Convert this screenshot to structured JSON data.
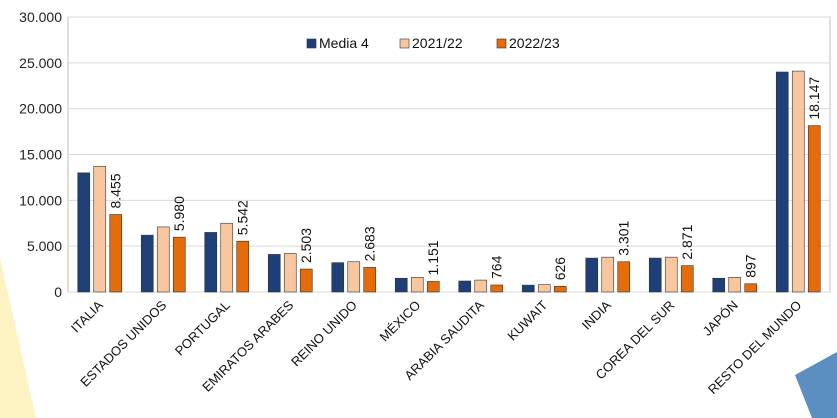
{
  "chart_data": {
    "type": "bar",
    "title": "",
    "xlabel": "",
    "ylabel": "",
    "ylim": [
      0,
      30000
    ],
    "yticks": [
      "0",
      "5.000",
      "10.000",
      "15.000",
      "20.000",
      "25.000",
      "30.000"
    ],
    "ytick_values": [
      0,
      5000,
      10000,
      15000,
      20000,
      25000,
      30000
    ],
    "grid": "horizontal",
    "legend_position": "top-center",
    "categories": [
      "ITALIA",
      "ESTADOS UNIDOS",
      "PORTUGAL",
      "EMIRATOS ARABES",
      "REINO UNIDO",
      "MÉXICO",
      "ARABIA SAUDITA",
      "KUWAIT",
      "INDIA",
      "COREA DEL SUR",
      "JAPÓN",
      "RESTO DEL MUNDO"
    ],
    "series": [
      {
        "name": "Media 4",
        "color": "#1f3f78",
        "values": [
          13000,
          6200,
          6500,
          4100,
          3200,
          1500,
          1200,
          750,
          3700,
          3700,
          1500,
          24000
        ]
      },
      {
        "name": "2021/22",
        "color": "#f8c79f",
        "values": [
          13700,
          7100,
          7500,
          4200,
          3300,
          1600,
          1300,
          800,
          3800,
          3800,
          1600,
          24100
        ]
      },
      {
        "name": "2022/23",
        "color": "#e46c0a",
        "values": [
          8455,
          5980,
          5542,
          2503,
          2683,
          1151,
          764,
          626,
          3301,
          2871,
          897,
          18147
        ]
      }
    ],
    "data_labels": [
      "8.455",
      "5.980",
      "5.542",
      "2.503",
      "2.683",
      "1.151",
      "764",
      "626",
      "3.301",
      "2.871",
      "897",
      "18.147"
    ]
  },
  "colors": {
    "deco_left": "#fdf3c2",
    "deco_corner": "#5b8fc2",
    "grid": "#d9d9d9",
    "frame": "#bfbfbf"
  }
}
